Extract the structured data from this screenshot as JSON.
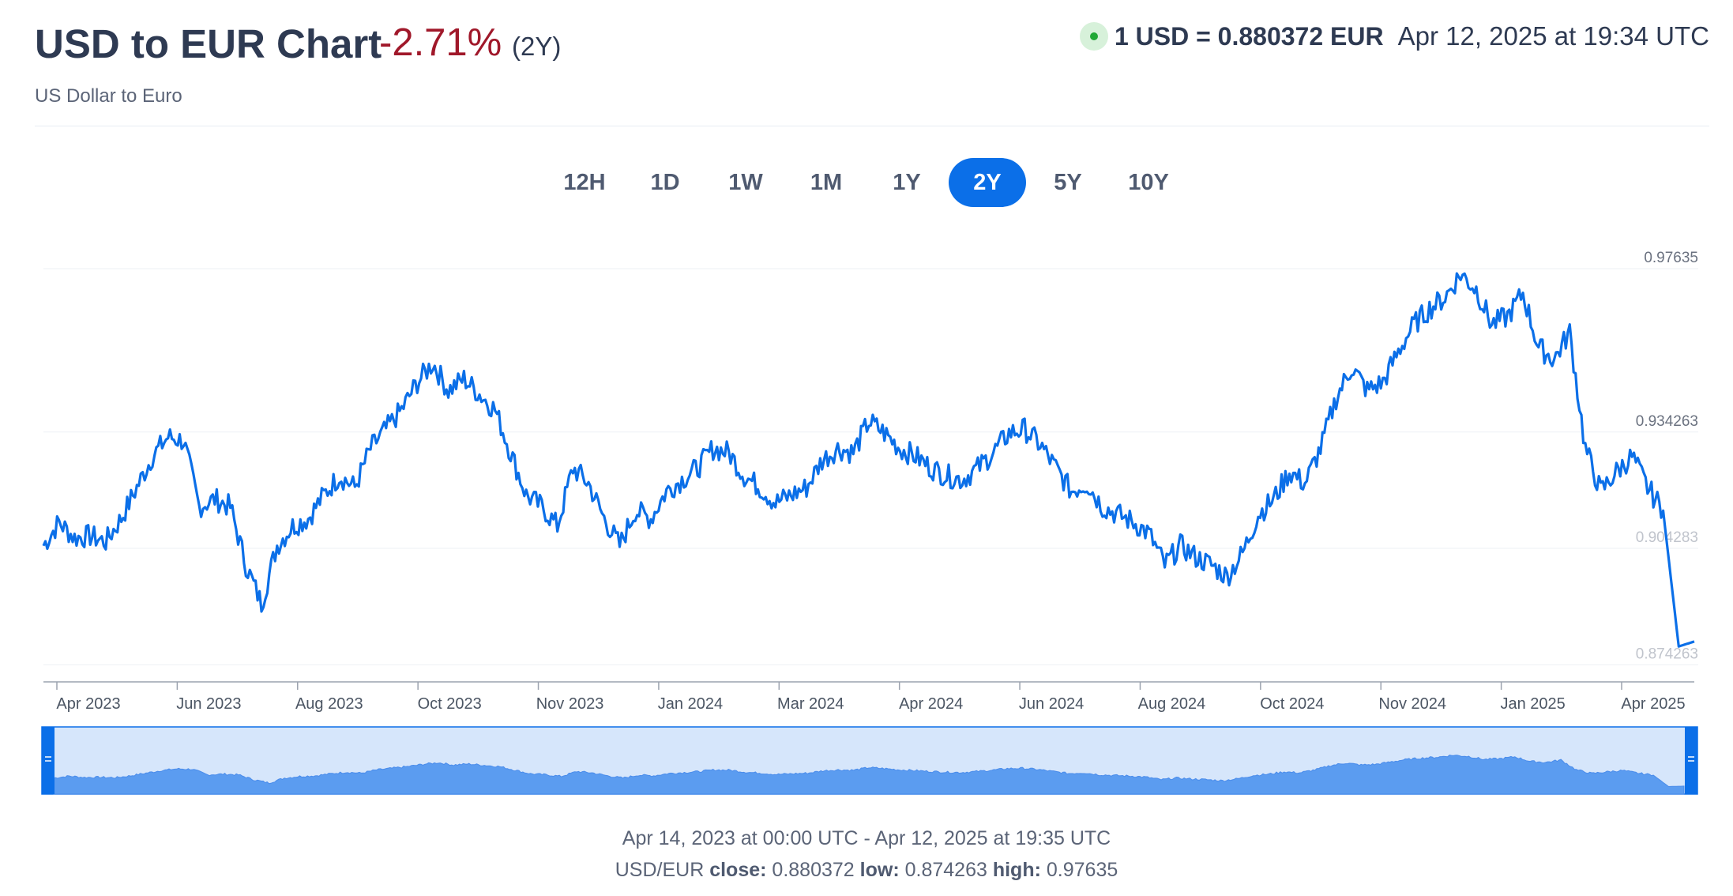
{
  "header": {
    "title": "USD to EUR Chart",
    "change": "-2.71%",
    "period": "(2Y)",
    "subtitle": "US Dollar to Euro",
    "rate": "1 USD = 0.880372 EUR",
    "timestamp": "Apr 12, 2025 at 19:34 UTC"
  },
  "tabs": [
    {
      "label": "12H",
      "active": false
    },
    {
      "label": "1D",
      "active": false
    },
    {
      "label": "1W",
      "active": false
    },
    {
      "label": "1M",
      "active": false
    },
    {
      "label": "1Y",
      "active": false
    },
    {
      "label": "2Y",
      "active": true
    },
    {
      "label": "5Y",
      "active": false
    },
    {
      "label": "10Y",
      "active": false
    }
  ],
  "colors": {
    "line": "#0b6fe8",
    "navigator_fill": "#5b9cf0",
    "navigator_band": "#d6e6fb",
    "negative": "#a0182a",
    "live": "#21a836"
  },
  "footer": {
    "range": "Apr 14, 2023 at 00:00 UTC - Apr 12, 2025 at 19:35 UTC",
    "pair": "USD/EUR",
    "close_label": "close:",
    "close": "0.880372",
    "low_label": "low:",
    "low": "0.874263",
    "high_label": "high:",
    "high": "0.97635"
  },
  "chart_data": {
    "type": "line",
    "title": "USD to EUR Chart",
    "series_name": "USD/EUR",
    "x_labels": [
      "Apr 2023",
      "Jun 2023",
      "Aug 2023",
      "Oct 2023",
      "Nov 2023",
      "Jan 2024",
      "Mar 2024",
      "Apr 2024",
      "Jun 2024",
      "Aug 2024",
      "Oct 2024",
      "Nov 2024",
      "Jan 2025",
      "Apr 2025"
    ],
    "y_ticks": [
      0.874263,
      0.904283,
      0.934263,
      0.97635
    ],
    "y_tick_labels": [
      "0.874263",
      "0.904283",
      "0.934263",
      "0.97635"
    ],
    "ylim": [
      0.8705,
      0.97635
    ],
    "x": [
      "2023-04-14",
      "2023-04-20",
      "2023-04-27",
      "2023-05-03",
      "2023-05-10",
      "2023-05-17",
      "2023-05-24",
      "2023-05-31",
      "2023-06-07",
      "2023-06-14",
      "2023-06-20",
      "2023-06-27",
      "2023-07-05",
      "2023-07-12",
      "2023-07-19",
      "2023-07-26",
      "2023-08-02",
      "2023-08-09",
      "2023-08-16",
      "2023-08-23",
      "2023-08-30",
      "2023-09-06",
      "2023-09-13",
      "2023-09-20",
      "2023-09-27",
      "2023-10-03",
      "2023-10-10",
      "2023-10-17",
      "2023-10-24",
      "2023-10-31",
      "2023-11-07",
      "2023-11-14",
      "2023-11-21",
      "2023-11-28",
      "2023-12-05",
      "2023-12-12",
      "2023-12-19",
      "2023-12-27",
      "2024-01-03",
      "2024-01-10",
      "2024-01-17",
      "2024-01-24",
      "2024-01-31",
      "2024-02-07",
      "2024-02-14",
      "2024-02-21",
      "2024-02-28",
      "2024-03-06",
      "2024-03-13",
      "2024-03-20",
      "2024-03-27",
      "2024-04-03",
      "2024-04-10",
      "2024-04-17",
      "2024-04-24",
      "2024-05-01",
      "2024-05-08",
      "2024-05-15",
      "2024-05-22",
      "2024-05-29",
      "2024-06-05",
      "2024-06-12",
      "2024-06-19",
      "2024-06-26",
      "2024-07-03",
      "2024-07-10",
      "2024-07-17",
      "2024-07-24",
      "2024-07-31",
      "2024-08-07",
      "2024-08-14",
      "2024-08-21",
      "2024-08-28",
      "2024-09-04",
      "2024-09-11",
      "2024-09-18",
      "2024-09-25",
      "2024-10-02",
      "2024-10-09",
      "2024-10-16",
      "2024-10-23",
      "2024-10-30",
      "2024-11-06",
      "2024-11-13",
      "2024-11-20",
      "2024-11-27",
      "2024-12-04",
      "2024-12-11",
      "2024-12-18",
      "2024-12-25",
      "2025-01-01",
      "2025-01-08",
      "2025-01-15",
      "2025-01-22",
      "2025-01-29",
      "2025-02-05",
      "2025-02-12",
      "2025-02-19",
      "2025-02-26",
      "2025-03-05",
      "2025-03-12",
      "2025-03-19",
      "2025-03-26",
      "2025-04-02",
      "2025-04-07",
      "2025-04-10",
      "2025-04-12"
    ],
    "values": [
      0.905,
      0.911,
      0.907,
      0.9075,
      0.906,
      0.912,
      0.92,
      0.928,
      0.933,
      0.932,
      0.915,
      0.917,
      0.915,
      0.9,
      0.89,
      0.905,
      0.91,
      0.912,
      0.918,
      0.923,
      0.92,
      0.93,
      0.935,
      0.94,
      0.947,
      0.952,
      0.945,
      0.948,
      0.944,
      0.94,
      0.929,
      0.918,
      0.915,
      0.91,
      0.925,
      0.921,
      0.912,
      0.905,
      0.914,
      0.912,
      0.919,
      0.922,
      0.925,
      0.93,
      0.929,
      0.923,
      0.92,
      0.916,
      0.918,
      0.92,
      0.927,
      0.93,
      0.929,
      0.937,
      0.934,
      0.93,
      0.928,
      0.925,
      0.923,
      0.922,
      0.925,
      0.929,
      0.934,
      0.935,
      0.931,
      0.925,
      0.919,
      0.921,
      0.915,
      0.913,
      0.911,
      0.908,
      0.9,
      0.905,
      0.902,
      0.9,
      0.897,
      0.903,
      0.913,
      0.917,
      0.924,
      0.921,
      0.93,
      0.943,
      0.951,
      0.945,
      0.947,
      0.955,
      0.962,
      0.966,
      0.969,
      0.975,
      0.971,
      0.962,
      0.964,
      0.97,
      0.956,
      0.953,
      0.96,
      0.93,
      0.919,
      0.924,
      0.928,
      0.92,
      0.914,
      0.879,
      0.8803
    ]
  }
}
